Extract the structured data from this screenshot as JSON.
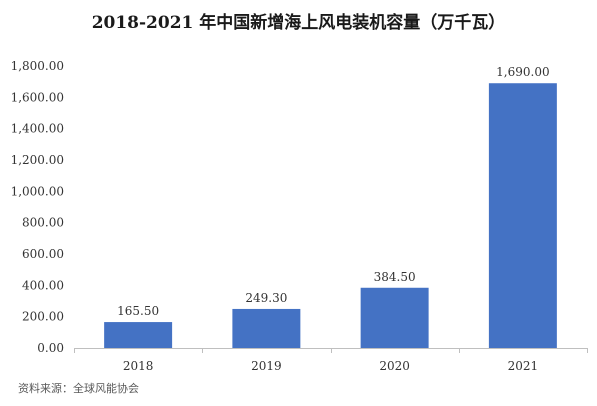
{
  "chart_data": {
    "type": "bar",
    "title": "2018-2021 年中国新增海上风电装机容量（万千瓦）",
    "categories": [
      "2018",
      "2019",
      "2020",
      "2021"
    ],
    "values": [
      165.5,
      249.3,
      384.5,
      1690.0
    ],
    "data_labels": [
      "165.50",
      "249.30",
      "384.50",
      "1,690.00"
    ],
    "ylim": [
      0,
      1800
    ],
    "y_ticks": [
      0,
      200,
      400,
      600,
      800,
      1000,
      1200,
      1400,
      1600,
      1800
    ],
    "y_tick_labels": [
      "0.00",
      "200.00",
      "400.00",
      "600.00",
      "800.00",
      "1,000.00",
      "1,200.00",
      "1,400.00",
      "1,600.00",
      "1,800.00"
    ],
    "grid": false,
    "legend": "none",
    "bar_color": "#4472C4"
  },
  "source": "资料来源：全球风能协会"
}
